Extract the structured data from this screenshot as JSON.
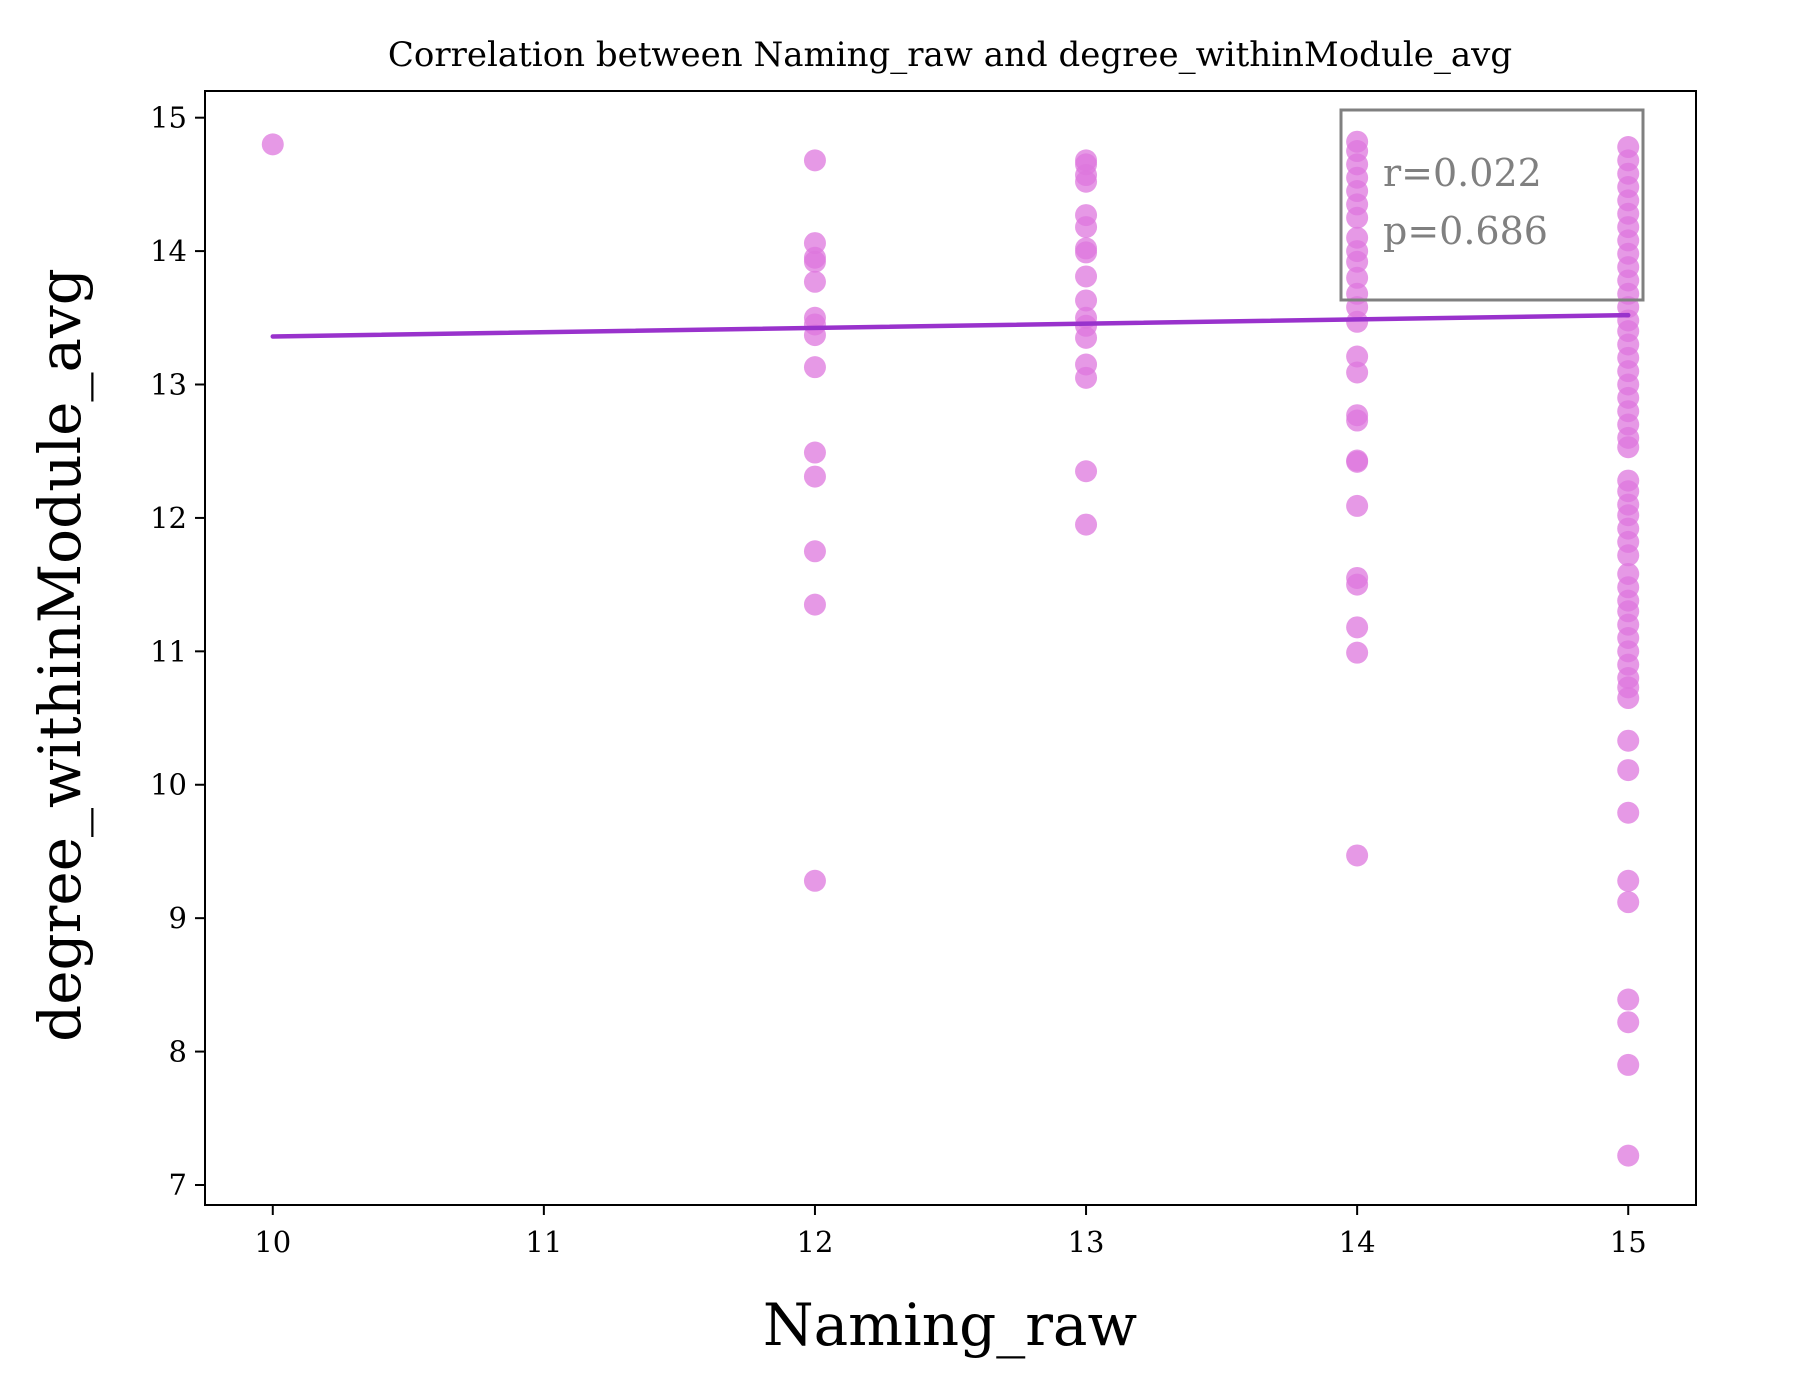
{
  "chart_data": {
    "type": "scatter",
    "title": "Correlation between Naming_raw and degree_withinModule_avg",
    "xlabel": "Naming_raw",
    "ylabel": "degree_withinModule_avg",
    "xlim": [
      9.75,
      15.25
    ],
    "ylim": [
      6.85,
      15.2
    ],
    "xticks": [
      "10",
      "11",
      "12",
      "13",
      "14",
      "15"
    ],
    "yticks": [
      "7",
      "8",
      "9",
      "10",
      "11",
      "12",
      "13",
      "14",
      "15"
    ],
    "grid": false,
    "point_color": "#dd77dd",
    "line_color": "#9932cc",
    "points": [
      {
        "x": 10,
        "y": 14.8
      },
      {
        "x": 12,
        "y": 14.68
      },
      {
        "x": 12,
        "y": 14.06
      },
      {
        "x": 12,
        "y": 13.95
      },
      {
        "x": 12,
        "y": 13.92
      },
      {
        "x": 12,
        "y": 13.77
      },
      {
        "x": 12,
        "y": 13.5
      },
      {
        "x": 12,
        "y": 13.45
      },
      {
        "x": 12,
        "y": 13.37
      },
      {
        "x": 12,
        "y": 13.13
      },
      {
        "x": 12,
        "y": 12.49
      },
      {
        "x": 12,
        "y": 12.31
      },
      {
        "x": 12,
        "y": 11.75
      },
      {
        "x": 12,
        "y": 11.35
      },
      {
        "x": 12,
        "y": 9.28
      },
      {
        "x": 13,
        "y": 14.68
      },
      {
        "x": 13,
        "y": 14.65
      },
      {
        "x": 13,
        "y": 14.57
      },
      {
        "x": 13,
        "y": 14.52
      },
      {
        "x": 13,
        "y": 14.27
      },
      {
        "x": 13,
        "y": 14.18
      },
      {
        "x": 13,
        "y": 14.02
      },
      {
        "x": 13,
        "y": 13.99
      },
      {
        "x": 13,
        "y": 13.81
      },
      {
        "x": 13,
        "y": 13.63
      },
      {
        "x": 13,
        "y": 13.5
      },
      {
        "x": 13,
        "y": 13.44
      },
      {
        "x": 13,
        "y": 13.35
      },
      {
        "x": 13,
        "y": 13.15
      },
      {
        "x": 13,
        "y": 13.05
      },
      {
        "x": 13,
        "y": 12.35
      },
      {
        "x": 13,
        "y": 11.95
      },
      {
        "x": 14,
        "y": 14.82
      },
      {
        "x": 14,
        "y": 14.75
      },
      {
        "x": 14,
        "y": 14.65
      },
      {
        "x": 14,
        "y": 14.55
      },
      {
        "x": 14,
        "y": 14.45
      },
      {
        "x": 14,
        "y": 14.35
      },
      {
        "x": 14,
        "y": 14.25
      },
      {
        "x": 14,
        "y": 14.1
      },
      {
        "x": 14,
        "y": 14.0
      },
      {
        "x": 14,
        "y": 13.92
      },
      {
        "x": 14,
        "y": 13.8
      },
      {
        "x": 14,
        "y": 13.68
      },
      {
        "x": 14,
        "y": 13.58
      },
      {
        "x": 14,
        "y": 13.47
      },
      {
        "x": 14,
        "y": 13.21
      },
      {
        "x": 14,
        "y": 13.09
      },
      {
        "x": 14,
        "y": 12.77
      },
      {
        "x": 14,
        "y": 12.73
      },
      {
        "x": 14,
        "y": 12.43
      },
      {
        "x": 14,
        "y": 12.42
      },
      {
        "x": 14,
        "y": 12.09
      },
      {
        "x": 14,
        "y": 11.55
      },
      {
        "x": 14,
        "y": 11.5
      },
      {
        "x": 14,
        "y": 11.18
      },
      {
        "x": 14,
        "y": 10.99
      },
      {
        "x": 14,
        "y": 9.47
      },
      {
        "x": 15,
        "y": 14.78
      },
      {
        "x": 15,
        "y": 14.68
      },
      {
        "x": 15,
        "y": 14.58
      },
      {
        "x": 15,
        "y": 14.48
      },
      {
        "x": 15,
        "y": 14.38
      },
      {
        "x": 15,
        "y": 14.28
      },
      {
        "x": 15,
        "y": 14.18
      },
      {
        "x": 15,
        "y": 14.08
      },
      {
        "x": 15,
        "y": 13.98
      },
      {
        "x": 15,
        "y": 13.88
      },
      {
        "x": 15,
        "y": 13.78
      },
      {
        "x": 15,
        "y": 13.68
      },
      {
        "x": 15,
        "y": 13.58
      },
      {
        "x": 15,
        "y": 13.48
      },
      {
        "x": 15,
        "y": 13.4
      },
      {
        "x": 15,
        "y": 13.3
      },
      {
        "x": 15,
        "y": 13.2
      },
      {
        "x": 15,
        "y": 13.1
      },
      {
        "x": 15,
        "y": 13.0
      },
      {
        "x": 15,
        "y": 12.9
      },
      {
        "x": 15,
        "y": 12.8
      },
      {
        "x": 15,
        "y": 12.7
      },
      {
        "x": 15,
        "y": 12.6
      },
      {
        "x": 15,
        "y": 12.53
      },
      {
        "x": 15,
        "y": 12.28
      },
      {
        "x": 15,
        "y": 12.2
      },
      {
        "x": 15,
        "y": 12.1
      },
      {
        "x": 15,
        "y": 12.02
      },
      {
        "x": 15,
        "y": 11.92
      },
      {
        "x": 15,
        "y": 11.82
      },
      {
        "x": 15,
        "y": 11.72
      },
      {
        "x": 15,
        "y": 11.58
      },
      {
        "x": 15,
        "y": 11.48
      },
      {
        "x": 15,
        "y": 11.38
      },
      {
        "x": 15,
        "y": 11.3
      },
      {
        "x": 15,
        "y": 11.2
      },
      {
        "x": 15,
        "y": 11.1
      },
      {
        "x": 15,
        "y": 11.0
      },
      {
        "x": 15,
        "y": 10.9
      },
      {
        "x": 15,
        "y": 10.8
      },
      {
        "x": 15,
        "y": 10.73
      },
      {
        "x": 15,
        "y": 10.65
      },
      {
        "x": 15,
        "y": 10.33
      },
      {
        "x": 15,
        "y": 10.11
      },
      {
        "x": 15,
        "y": 9.79
      },
      {
        "x": 15,
        "y": 9.28
      },
      {
        "x": 15,
        "y": 9.12
      },
      {
        "x": 15,
        "y": 8.39
      },
      {
        "x": 15,
        "y": 8.22
      },
      {
        "x": 15,
        "y": 7.9
      },
      {
        "x": 15,
        "y": 7.22
      }
    ],
    "regression_line": {
      "x": [
        10,
        15
      ],
      "y": [
        13.36,
        13.52
      ]
    },
    "annotation": {
      "r_text": "r=0.022",
      "p_text": "p=0.686"
    }
  }
}
